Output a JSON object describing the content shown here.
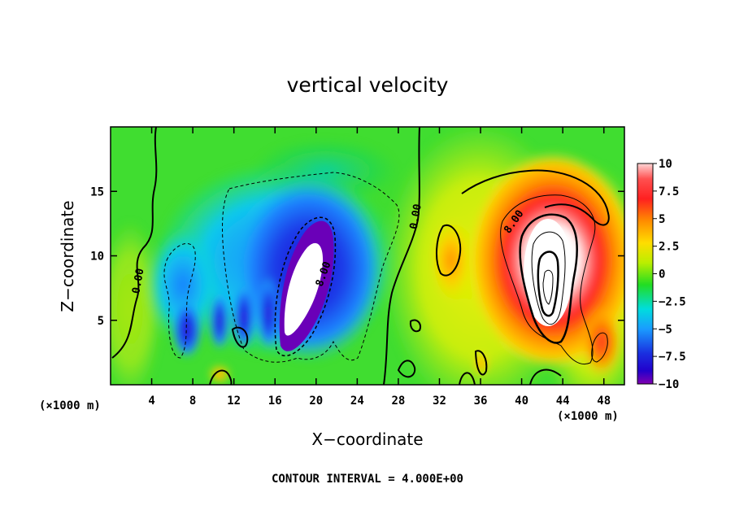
{
  "chart_data": {
    "type": "heatmap",
    "title": "vertical velocity",
    "xlabel": "X−coordinate",
    "ylabel": "Z−coordinate",
    "x_unit_note": "(×1000 m)",
    "y_unit_note": "(×1000 m)",
    "x_ticks": [
      4,
      8,
      12,
      16,
      20,
      24,
      28,
      32,
      36,
      40,
      44,
      48
    ],
    "y_ticks": [
      5,
      10,
      15
    ],
    "xlim": [
      0,
      50
    ],
    "ylim": [
      0,
      20
    ],
    "colorbar": {
      "ticks": [
        10,
        7.5,
        5,
        2.5,
        0,
        -2.5,
        -5,
        -7.5,
        -10
      ],
      "tick_labels": [
        "10",
        "7.5",
        "5",
        "2.5",
        "0",
        "−2.5",
        "−5",
        "−7.5",
        "−10"
      ],
      "range": [
        -10,
        10
      ]
    },
    "contour_labels": [
      {
        "text": "0.00",
        "x": 3,
        "y": 8,
        "rotate": -80
      },
      {
        "text": "0.00",
        "x": 30,
        "y": 13,
        "rotate": -80
      },
      {
        "text": "8.00",
        "x": 21,
        "y": 8.5,
        "rotate": -70
      },
      {
        "text": "8.00",
        "x": 39.5,
        "y": 12.5,
        "rotate": -55
      }
    ],
    "contour_interval_note": "CONTOUR INTERVAL =   4.000E+00",
    "features": [
      {
        "kind": "downdraft",
        "x": 20,
        "z": 8,
        "min": -10
      },
      {
        "kind": "updraft",
        "x": 42.5,
        "z": 8.5,
        "max": 10
      }
    ]
  }
}
